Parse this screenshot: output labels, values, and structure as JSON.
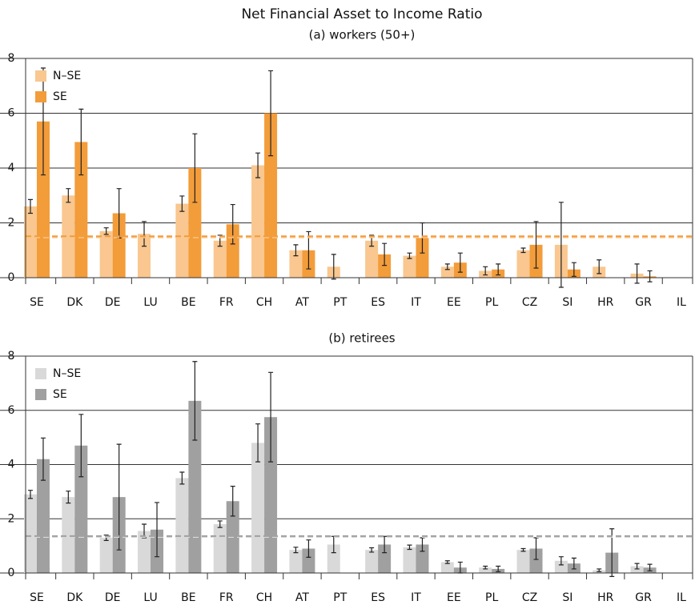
{
  "title": "Net Financial Asset to Income Ratio",
  "chart_data": [
    {
      "type": "bar",
      "subtitle": "(a) workers (50+)",
      "categories": [
        "SE",
        "DK",
        "DE",
        "LU",
        "BE",
        "FR",
        "CH",
        "AT",
        "PT",
        "ES",
        "IT",
        "EE",
        "PL",
        "CZ",
        "SI",
        "HR",
        "GR",
        "IL"
      ],
      "series": [
        {
          "name": "N–SE",
          "color": "#f9c78f",
          "mean": 1.47,
          "values": [
            2.6,
            3.0,
            1.7,
            1.6,
            2.7,
            1.35,
            4.1,
            1.0,
            0.4,
            1.35,
            0.8,
            0.4,
            0.25,
            1.0,
            1.2,
            0.4,
            0.15,
            0
          ],
          "errors": [
            0.25,
            0.25,
            0.12,
            0.45,
            0.28,
            0.2,
            0.45,
            0.2,
            0.45,
            0.2,
            0.1,
            0.1,
            0.15,
            0.08,
            1.55,
            0.25,
            0.35,
            0
          ]
        },
        {
          "name": "SE",
          "color": "#f39c3a",
          "mean": 1.51,
          "values": [
            5.7,
            4.95,
            2.35,
            0,
            4.0,
            1.95,
            6.0,
            1.0,
            0,
            0.85,
            1.45,
            0.55,
            0.3,
            1.2,
            0.3,
            0,
            0.05,
            0
          ],
          "errors": [
            1.95,
            1.2,
            0.9,
            0,
            1.25,
            0.72,
            1.55,
            0.68,
            0,
            0.4,
            0.55,
            0.35,
            0.2,
            0.85,
            0.25,
            0,
            0.2,
            0
          ]
        }
      ],
      "ylim": [
        0,
        8
      ],
      "yticks": [
        0,
        2,
        4,
        6,
        8
      ],
      "grid": true,
      "legend": "upper left"
    },
    {
      "type": "bar",
      "subtitle": "(b) retirees",
      "categories": [
        "SE",
        "DK",
        "DE",
        "LU",
        "BE",
        "FR",
        "CH",
        "AT",
        "PT",
        "ES",
        "IT",
        "EE",
        "PL",
        "CZ",
        "SI",
        "HR",
        "GR",
        "IL"
      ],
      "series": [
        {
          "name": "N–SE",
          "color": "#d9d9d9",
          "mean": 1.33,
          "values": [
            2.9,
            2.8,
            1.3,
            1.55,
            3.5,
            1.8,
            4.8,
            0.85,
            1.05,
            0.85,
            0.95,
            0.4,
            0.2,
            0.85,
            0.45,
            0.1,
            0.25,
            0
          ],
          "errors": [
            0.15,
            0.22,
            0.1,
            0.25,
            0.22,
            0.12,
            0.7,
            0.1,
            0.3,
            0.08,
            0.08,
            0.05,
            0.05,
            0.05,
            0.15,
            0.05,
            0.1,
            0
          ]
        },
        {
          "name": "SE",
          "color": "#a0a0a0",
          "mean": 1.36,
          "values": [
            4.2,
            4.7,
            2.8,
            1.6,
            6.35,
            2.65,
            5.75,
            0.9,
            0,
            1.05,
            1.05,
            0.2,
            0.15,
            0.9,
            0.35,
            0.75,
            0.2,
            0
          ],
          "errors": [
            0.78,
            1.15,
            1.95,
            1.0,
            1.45,
            0.55,
            1.65,
            0.32,
            0,
            0.3,
            0.25,
            0.2,
            0.1,
            0.4,
            0.2,
            0.88,
            0.12,
            0
          ]
        }
      ],
      "ylim": [
        0,
        8
      ],
      "yticks": [
        0,
        2,
        4,
        6,
        8
      ],
      "grid": true,
      "legend": "upper left"
    }
  ]
}
